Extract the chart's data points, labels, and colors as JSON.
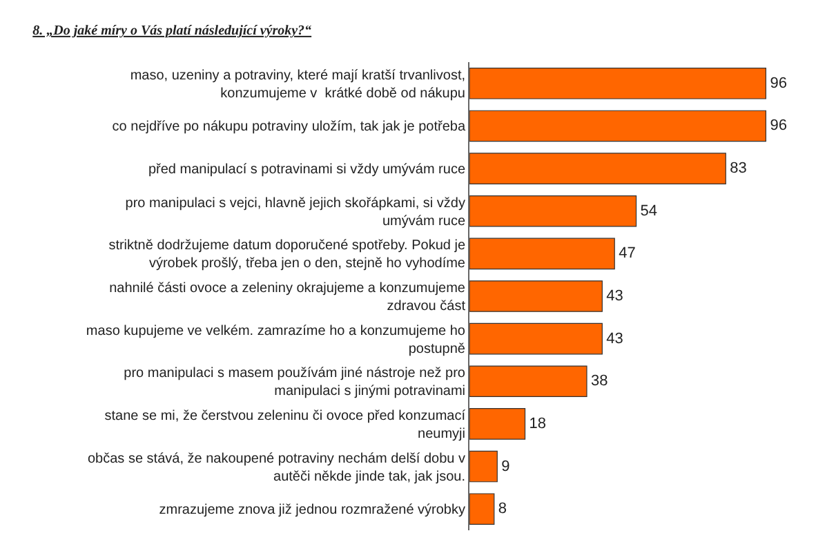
{
  "chart_data": {
    "type": "bar",
    "orientation": "horizontal",
    "title": "8. „Do jaké míry o Vás platí následující výroky?“",
    "categories": [
      "maso, uzeniny a potraviny, které mají kratší trvanlivost,\nkonzumujeme v  krátké době od nákupu",
      "co nejdříve po nákupu potraviny uložím, tak jak je potřeba",
      "před manipulací s potravinami si vždy umývám ruce",
      "pro manipulaci s vejci, hlavně jejich skořápkami, si vždy\numývám ruce",
      "striktně dodržujeme datum doporučené spotřeby. Pokud je\nvýrobek prošlý, třeba jen o den, stejně ho vyhodíme",
      "nahnilé části ovoce a zeleniny okrajujeme a konzumujeme\nzdravou část",
      "maso kupujeme ve velkém. zamrazíme ho a konzumujeme ho\npostupně",
      "pro manipulaci s masem používám jiné nástroje než pro\nmanipulaci s jinými potravinami",
      "stane se mi, že čerstvou zeleninu či ovoce před konzumací\nneumyji",
      "občas se stává, že nakoupené potraviny nechám delší dobu v\nautěči někde jinde tak, jak jsou.",
      "zmrazujeme znova již jednou rozmražené výrobky"
    ],
    "values": [
      96,
      96,
      83,
      54,
      47,
      43,
      43,
      38,
      18,
      9,
      8
    ],
    "color": "#ff6600",
    "tick_labels": "y",
    "data_labels": true,
    "grid": false,
    "legend": false
  }
}
